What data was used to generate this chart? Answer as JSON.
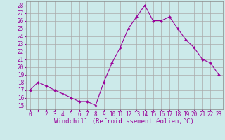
{
  "x": [
    0,
    1,
    2,
    3,
    4,
    5,
    6,
    7,
    8,
    9,
    10,
    11,
    12,
    13,
    14,
    15,
    16,
    17,
    18,
    19,
    20,
    21,
    22,
    23
  ],
  "y": [
    17,
    18,
    17.5,
    17,
    16.5,
    16,
    15.5,
    15.5,
    15,
    18,
    20.5,
    22.5,
    25,
    26.5,
    28,
    26,
    26,
    26.5,
    25,
    23.5,
    22.5,
    21,
    20.5,
    19
  ],
  "line_color": "#990099",
  "marker": "D",
  "marker_size": 2.0,
  "line_width": 0.8,
  "background_color": "#cceaea",
  "grid_color": "#aaaaaa",
  "xlabel": "Windchill (Refroidissement éolien,°C)",
  "xlabel_fontsize": 6.5,
  "xlabel_color": "#990099",
  "tick_color": "#990099",
  "tick_fontsize": 5.5,
  "ylim": [
    14.5,
    28.5
  ],
  "yticks": [
    15,
    16,
    17,
    18,
    19,
    20,
    21,
    22,
    23,
    24,
    25,
    26,
    27,
    28
  ],
  "xlim": [
    -0.5,
    23.5
  ],
  "xticks": [
    0,
    1,
    2,
    3,
    4,
    5,
    6,
    7,
    8,
    9,
    10,
    11,
    12,
    13,
    14,
    15,
    16,
    17,
    18,
    19,
    20,
    21,
    22,
    23
  ]
}
